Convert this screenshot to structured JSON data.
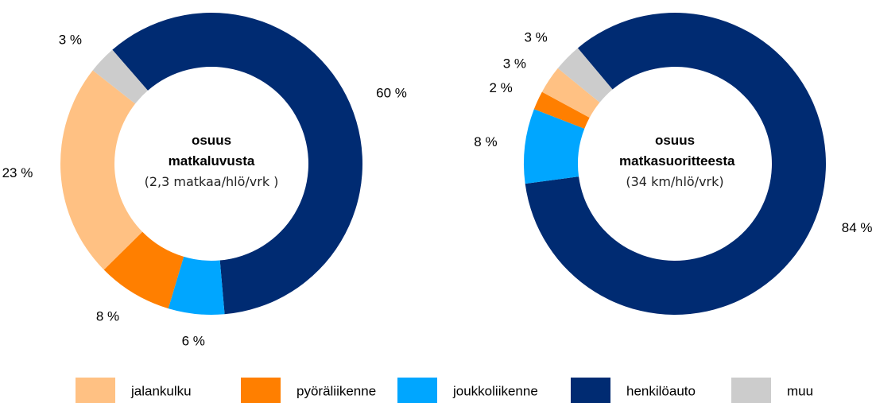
{
  "chart_data": [
    {
      "type": "pie",
      "title": "osuus matkaluvusta",
      "subtitle": "(2,3 matkaa/hlö/vrk )",
      "categories": [
        "henkilöauto",
        "joukkoliikenne",
        "pyöräliikenne",
        "jalankulku",
        "muu"
      ],
      "values": [
        60,
        6,
        8,
        23,
        3
      ],
      "value_labels": [
        "60 %",
        "6 %",
        "8 %",
        "23 %",
        "3 %"
      ],
      "colors": [
        "#002b72",
        "#00a6ff",
        "#ff7f00",
        "#ffc183",
        "#cccccc"
      ]
    },
    {
      "type": "pie",
      "title": "osuus matkasuoritteesta",
      "subtitle": "(34 km/hlö/vrk)",
      "categories": [
        "henkilöauto",
        "joukkoliikenne",
        "pyöräliikenne",
        "jalankulku",
        "muu"
      ],
      "values": [
        84,
        8,
        2,
        3,
        3
      ],
      "value_labels": [
        "84 %",
        "8 %",
        "2 %",
        "3 %",
        "3 %"
      ],
      "colors": [
        "#002b72",
        "#00a6ff",
        "#ff7f00",
        "#ffc183",
        "#cccccc"
      ]
    }
  ],
  "legend": {
    "order": [
      3,
      2,
      1,
      0,
      4
    ]
  }
}
